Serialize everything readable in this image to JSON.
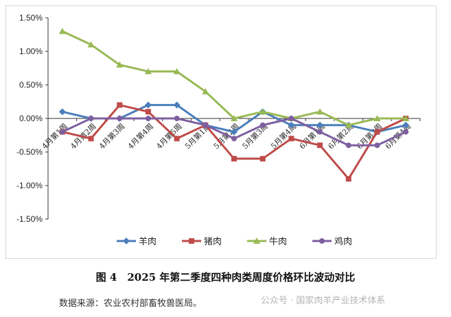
{
  "chart_data": {
    "type": "line",
    "categories": [
      "4月第1周",
      "4月第2周",
      "4月第3周",
      "4月第4周",
      "4月第5周",
      "5月第1周",
      "5月第2周",
      "5月第3周",
      "5月第4周",
      "6月第1周",
      "6月第2周",
      "6月第3周",
      "6月第4周"
    ],
    "ylim": [
      -1.5,
      1.5
    ],
    "yticks": [
      "1.50%",
      "1.00%",
      "0.50%",
      "0.00%",
      "-0.50%",
      "-1.00%",
      "-1.50%"
    ],
    "grid": false,
    "legend": "bottom",
    "series": [
      {
        "name": "羊肉",
        "color": "#4a7ebb",
        "marker": "diamond",
        "values": [
          0.1,
          0,
          0,
          0.2,
          0.2,
          -0.1,
          -0.2,
          0.1,
          -0.1,
          -0.1,
          -0.1,
          -0.2,
          -0.1
        ]
      },
      {
        "name": "猪肉",
        "color": "#be4b48",
        "marker": "square",
        "values": [
          -0.2,
          -0.3,
          0.2,
          0.1,
          -0.3,
          -0.1,
          -0.6,
          -0.6,
          -0.3,
          -0.4,
          -0.9,
          -0.2,
          0
        ]
      },
      {
        "name": "牛肉",
        "color": "#98b954",
        "marker": "triangle",
        "values": [
          1.3,
          1.1,
          0.8,
          0.7,
          0.7,
          0.4,
          0,
          0.1,
          0,
          0.1,
          -0.1,
          0,
          0
        ]
      },
      {
        "name": "鸡肉",
        "color": "#7d5fa0",
        "marker": "circle",
        "values": [
          -0.2,
          0,
          0,
          0,
          0,
          -0.1,
          -0.3,
          -0.1,
          0,
          -0.2,
          -0.4,
          -0.4,
          -0.2
        ]
      }
    ]
  },
  "caption": "图 4　2025 年第二季度四种肉类周度价格环比波动对比",
  "source": "数据来源：农业农村部畜牧兽医局。",
  "watermark": "公众号 · 国家肉羊产业技术体系"
}
